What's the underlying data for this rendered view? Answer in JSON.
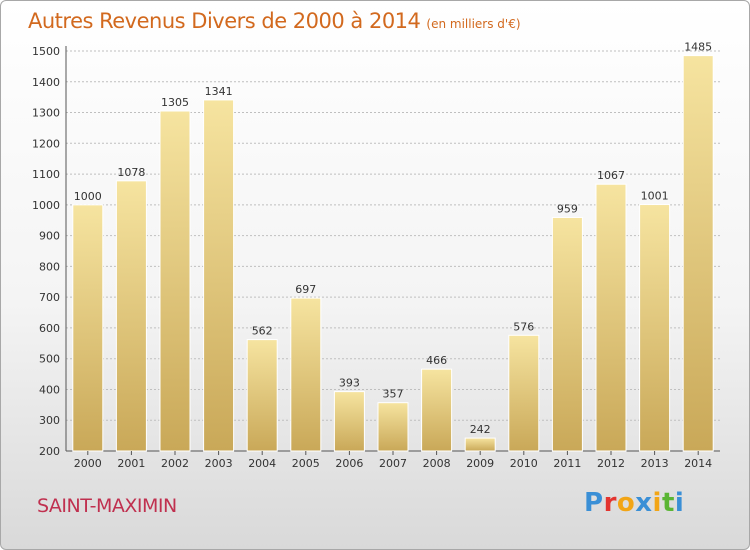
{
  "header": {
    "title": "Autres Revenus Divers de 2000 à 2014",
    "unit": "(en milliers d'€)"
  },
  "footer": {
    "place": "SAINT-MAXIMIN",
    "logo_letters": [
      "P",
      "r",
      "o",
      "x",
      "i",
      "t",
      "i"
    ],
    "logo_colors": [
      "#3a8fd6",
      "#e3342f",
      "#f2a516",
      "#3a8fd6",
      "#f2a516",
      "#5ab534",
      "#3a8fd6"
    ]
  },
  "colors": {
    "bar_light": "#f6e4a0",
    "bar_dark": "#c9a858",
    "grid": "#bfbfbf",
    "axis": "#555555"
  },
  "chart_data": {
    "type": "bar",
    "title": "Autres Revenus Divers de 2000 à 2014",
    "categories": [
      "2000",
      "2001",
      "2002",
      "2003",
      "2004",
      "2005",
      "2006",
      "2007",
      "2008",
      "2009",
      "2010",
      "2011",
      "2012",
      "2013",
      "2014"
    ],
    "values": [
      1000,
      1078,
      1305,
      1341,
      562,
      697,
      393,
      357,
      466,
      242,
      576,
      959,
      1067,
      1001,
      1485
    ],
    "yticks": [
      200,
      300,
      400,
      500,
      600,
      700,
      800,
      900,
      1000,
      1100,
      1200,
      1300,
      1400,
      1500
    ],
    "ylim": [
      200,
      1500
    ],
    "grid": true,
    "data_labels": true,
    "xlabel": "",
    "ylabel": ""
  }
}
